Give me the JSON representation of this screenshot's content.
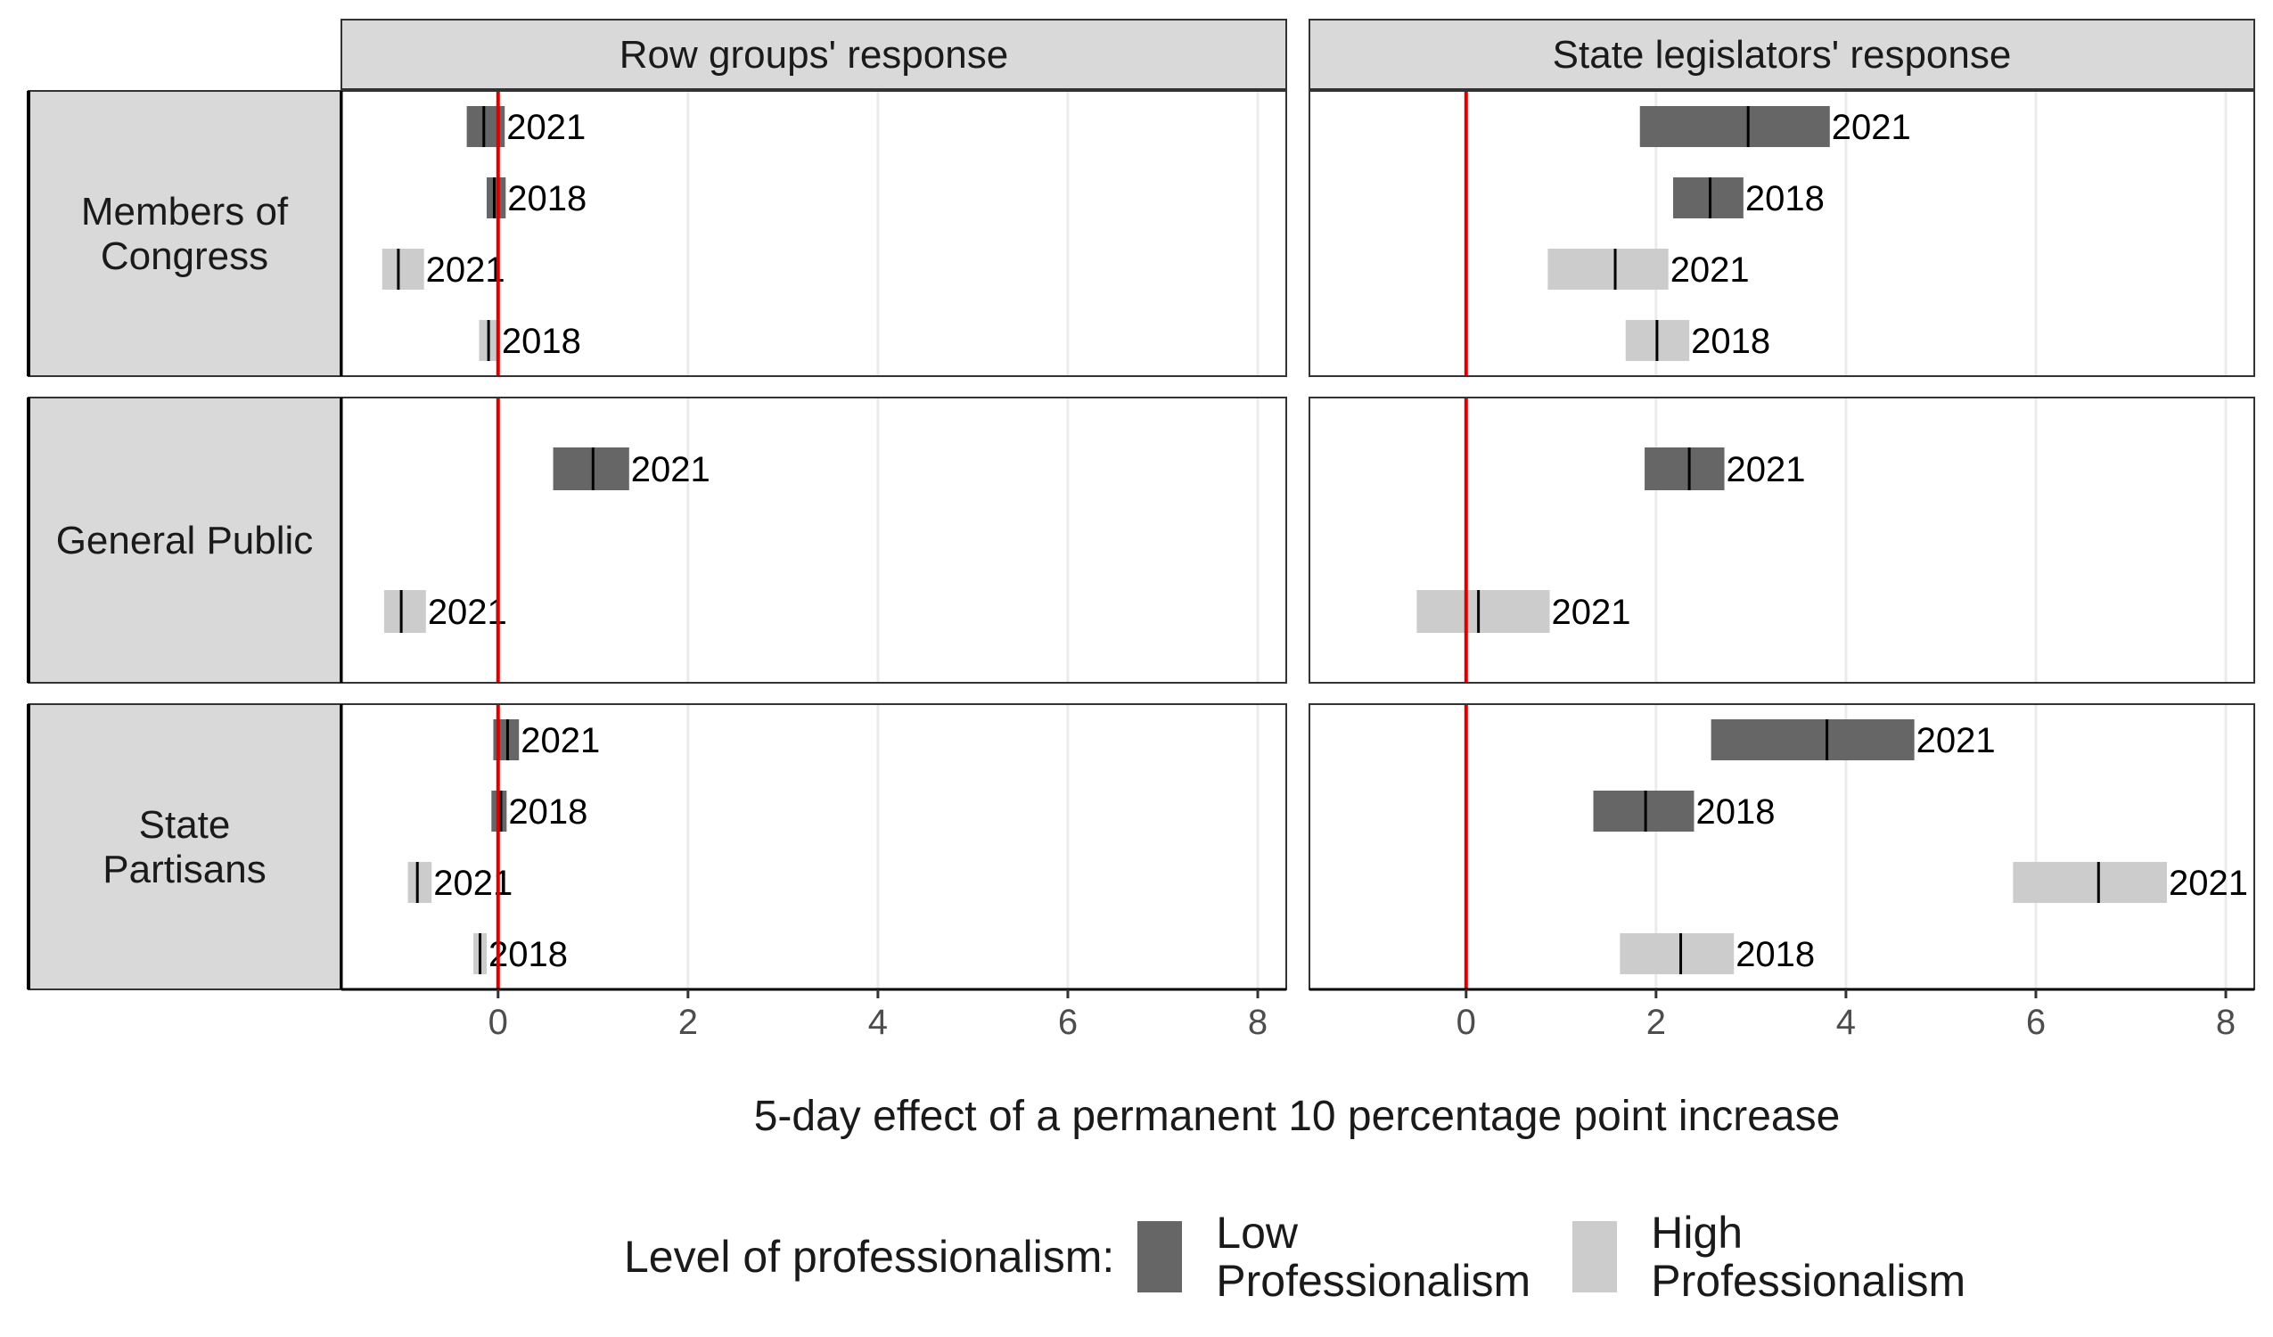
{
  "chart_data": {
    "type": "bar",
    "xlabel": "5-day effect of a permanent 10 percentage point increase",
    "xlim": [
      -1.65,
      8.3
    ],
    "x_ticks": [
      0,
      2,
      4,
      6,
      8
    ],
    "x_tick_labels": [
      "0",
      "2",
      "4",
      "6",
      "8"
    ],
    "reference_line": 0,
    "grid": true,
    "columns": [
      "Row groups' response",
      "State legislators' response"
    ],
    "rows": [
      {
        "name": "Members of Congress",
        "entries": [
          {
            "year": "2021",
            "level": "low",
            "row_groups": {
              "est": -0.15,
              "low": -0.33,
              "high": 0.07
            },
            "state_legislators": {
              "est": 2.97,
              "low": 1.83,
              "high": 3.83
            }
          },
          {
            "year": "2018",
            "level": "low",
            "row_groups": {
              "est": -0.04,
              "low": -0.12,
              "high": 0.08
            },
            "state_legislators": {
              "est": 2.57,
              "low": 2.18,
              "high": 2.92
            }
          },
          {
            "year": "2021",
            "level": "high",
            "row_groups": {
              "est": -1.05,
              "low": -1.22,
              "high": -0.78
            },
            "state_legislators": {
              "est": 1.57,
              "low": 0.86,
              "high": 2.13
            }
          },
          {
            "year": "2018",
            "level": "high",
            "row_groups": {
              "est": -0.1,
              "low": -0.2,
              "high": 0.02
            },
            "state_legislators": {
              "est": 2.01,
              "low": 1.68,
              "high": 2.35
            }
          }
        ]
      },
      {
        "name": "General Public",
        "entries": [
          {
            "year": "2021",
            "level": "low",
            "row_groups": {
              "est": 1.0,
              "low": 0.58,
              "high": 1.38
            },
            "state_legislators": {
              "est": 2.35,
              "low": 1.88,
              "high": 2.72
            }
          },
          {
            "year": "2021",
            "level": "high",
            "row_groups": {
              "est": -1.02,
              "low": -1.2,
              "high": -0.76
            },
            "state_legislators": {
              "est": 0.13,
              "low": -0.52,
              "high": 0.88
            }
          }
        ]
      },
      {
        "name": "State Partisans",
        "entries": [
          {
            "year": "2021",
            "level": "low",
            "row_groups": {
              "est": 0.1,
              "low": -0.05,
              "high": 0.22
            },
            "state_legislators": {
              "est": 3.8,
              "low": 2.58,
              "high": 4.72
            }
          },
          {
            "year": "2018",
            "level": "low",
            "row_groups": {
              "est": 0.03,
              "low": -0.07,
              "high": 0.09
            },
            "state_legislators": {
              "est": 1.89,
              "low": 1.34,
              "high": 2.4
            }
          },
          {
            "year": "2021",
            "level": "high",
            "row_groups": {
              "est": -0.85,
              "low": -0.95,
              "high": -0.7
            },
            "state_legislators": {
              "est": 6.66,
              "low": 5.76,
              "high": 7.38
            }
          },
          {
            "year": "2018",
            "level": "high",
            "row_groups": {
              "est": -0.19,
              "low": -0.26,
              "high": -0.12
            },
            "state_legislators": {
              "est": 2.26,
              "low": 1.62,
              "high": 2.82
            }
          }
        ]
      }
    ],
    "legend": {
      "title": "Level of professionalism:",
      "position": "bottom",
      "items": [
        {
          "key": "low",
          "label": "Low Professionalism",
          "color": "#666666"
        },
        {
          "key": "high",
          "label": "High Professionalism",
          "color": "#cccccc"
        }
      ]
    },
    "colors": {
      "low": "#666666",
      "high": "#cccccc",
      "reference_line": "#dd0000",
      "strip_fill": "#d9d9d9",
      "grid": "#ebebeb"
    }
  }
}
